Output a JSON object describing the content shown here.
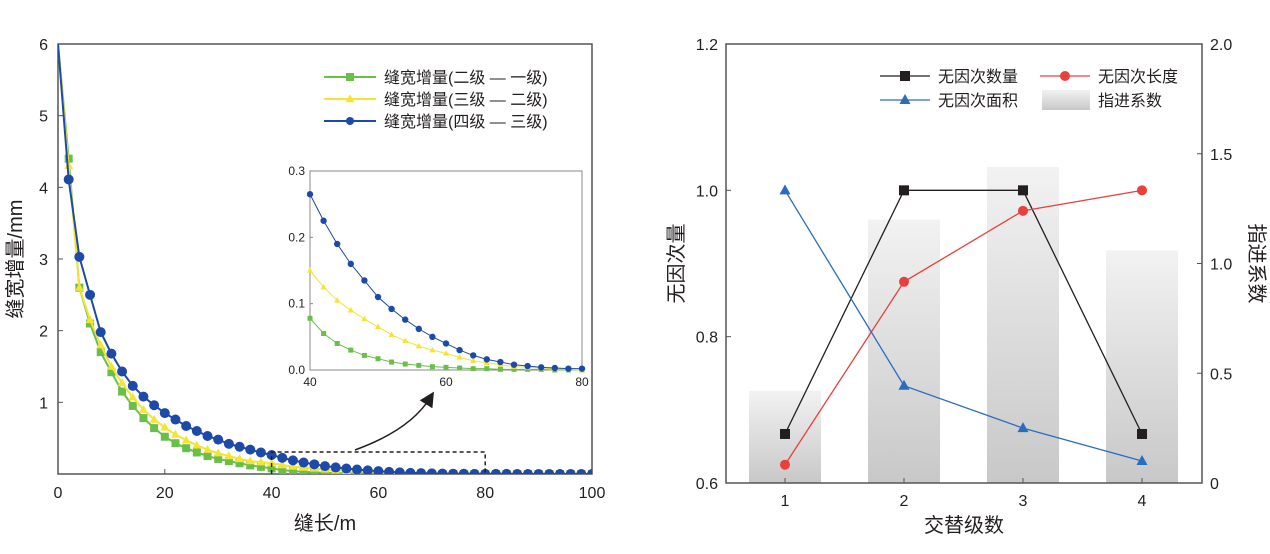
{
  "chart_data": [
    {
      "type": "line",
      "xlabel": "缝长/m",
      "ylabel": "缝宽增量/mm",
      "xlim": [
        0,
        100
      ],
      "ylim": [
        0,
        6
      ],
      "xticks": [
        "0",
        "20",
        "40",
        "60",
        "80",
        "100"
      ],
      "yticks": [
        "1",
        "2",
        "3",
        "4",
        "5",
        "6"
      ],
      "legend_position": "top-right",
      "x": [
        0,
        2,
        4,
        6,
        8,
        10,
        12,
        14,
        16,
        18,
        20,
        22,
        24,
        26,
        28,
        30,
        32,
        34,
        36,
        38,
        40,
        42,
        44,
        46,
        48,
        50,
        52,
        54,
        56,
        58,
        60,
        62,
        64,
        66,
        68,
        70,
        72,
        74,
        76,
        78,
        80,
        82,
        84,
        86,
        88,
        90,
        92,
        94,
        96,
        98,
        100
      ],
      "series": [
        {
          "name": "缝宽增量(二级 — 一级)",
          "color": "#6abf4b",
          "marker": "square",
          "values": [
            6,
            4.4,
            2.6,
            2.1,
            1.7,
            1.42,
            1.15,
            0.95,
            0.78,
            0.64,
            0.52,
            0.43,
            0.36,
            0.3,
            0.25,
            0.21,
            0.18,
            0.15,
            0.12,
            0.1,
            0.078,
            0.055,
            0.04,
            0.03,
            0.022,
            0.017,
            0.012,
            0.009,
            0.007,
            0.005,
            0.004,
            0.003,
            0.002,
            0.002,
            0.001,
            0.001,
            0.001,
            0.001,
            0,
            0,
            0,
            0,
            0,
            0,
            0,
            0,
            0,
            0,
            0,
            0,
            0
          ]
        },
        {
          "name": "缝宽增量(三级 — 二级)",
          "color": "#f2e534",
          "marker": "triangle",
          "values": [
            6,
            4.3,
            2.6,
            2.15,
            1.8,
            1.5,
            1.27,
            1.07,
            0.9,
            0.76,
            0.65,
            0.55,
            0.47,
            0.4,
            0.34,
            0.29,
            0.25,
            0.21,
            0.18,
            0.165,
            0.15,
            0.125,
            0.105,
            0.09,
            0.077,
            0.065,
            0.053,
            0.044,
            0.036,
            0.03,
            0.025,
            0.019,
            0.014,
            0.011,
            0.008,
            0.005,
            0.004,
            0.003,
            0.002,
            0.001,
            0,
            0,
            0,
            0,
            0,
            0,
            0,
            0,
            0,
            0,
            0
          ]
        },
        {
          "name": "缝宽增量(四级 — 三级)",
          "color": "#1d4aa8",
          "marker": "circle",
          "values": [
            6,
            4.11,
            3.03,
            2.5,
            1.98,
            1.68,
            1.43,
            1.23,
            1.08,
            0.96,
            0.85,
            0.76,
            0.67,
            0.6,
            0.53,
            0.48,
            0.42,
            0.38,
            0.34,
            0.3,
            0.265,
            0.225,
            0.19,
            0.16,
            0.135,
            0.11,
            0.092,
            0.076,
            0.062,
            0.05,
            0.04,
            0.03,
            0.022,
            0.016,
            0.012,
            0.008,
            0.006,
            0.004,
            0.003,
            0.002,
            0.002,
            0.001,
            0.001,
            0,
            0,
            0,
            0,
            0,
            0,
            0,
            0
          ]
        }
      ],
      "inset": {
        "xlim": [
          40,
          80
        ],
        "ylim": [
          0,
          0.3
        ],
        "xticks": [
          "40",
          "60",
          "80"
        ],
        "yticks": [
          "0.0",
          "0.1",
          "0.2",
          "0.3"
        ]
      }
    },
    {
      "type": "line+bar",
      "xlabel": "交替级数",
      "ylabel": "无因次量",
      "y2label": "指进系数",
      "categories": [
        "1",
        "2",
        "3",
        "4"
      ],
      "ylim": [
        0.6,
        1.2
      ],
      "y2lim": [
        0,
        2.0
      ],
      "yticks": [
        "0.6",
        "0.8",
        "1.0",
        "1.2"
      ],
      "y2ticks": [
        "0",
        "0.5",
        "1.0",
        "1.5",
        "2.0"
      ],
      "legend_position": "top-right",
      "series": [
        {
          "name": "无因次数量",
          "color": "#231f20",
          "marker": "square",
          "axis": "left",
          "values": [
            0.667,
            1.0,
            1.0,
            0.667
          ]
        },
        {
          "name": "无因次长度",
          "color": "#e8403c",
          "marker": "circle",
          "axis": "left",
          "values": [
            0.625,
            0.875,
            0.972,
            1.0
          ]
        },
        {
          "name": "无因次面积",
          "color": "#2a6cc0",
          "marker": "triangle",
          "axis": "left",
          "values": [
            1.0,
            0.733,
            0.675,
            0.63
          ]
        },
        {
          "name": "指进系数",
          "color": "#d9d9d9",
          "type": "bar",
          "axis": "right",
          "values": [
            0.42,
            1.2,
            1.44,
            1.06
          ]
        }
      ]
    }
  ]
}
